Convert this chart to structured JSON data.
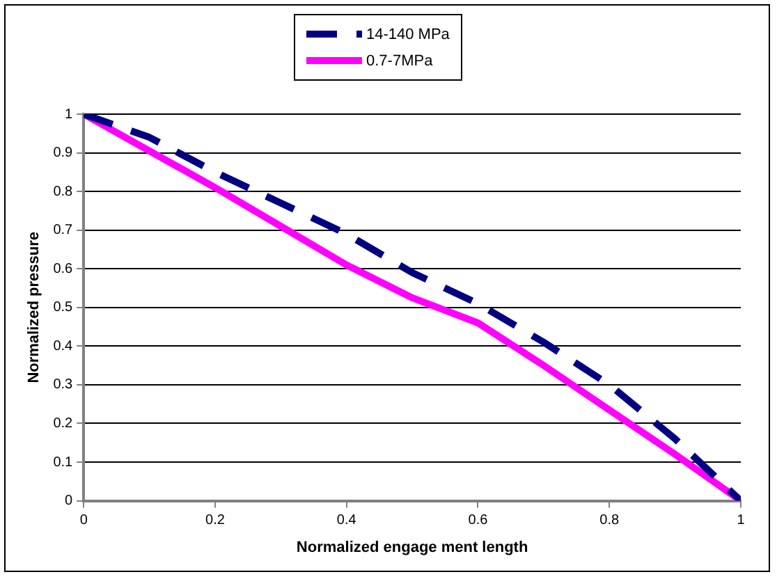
{
  "chart_data": {
    "type": "line",
    "xlabel": "Normalized engage ment length",
    "ylabel": "Normalized pressure",
    "x": [
      0,
      0.1,
      0.2,
      0.3,
      0.4,
      0.5,
      0.6,
      0.7,
      0.8,
      0.9,
      1
    ],
    "series": [
      {
        "name": "14-140 MPa",
        "color": "#000080",
        "line_style": "dashed",
        "values": [
          1,
          0.94,
          0.85,
          0.77,
          0.69,
          0.59,
          0.51,
          0.41,
          0.3,
          0.16,
          0
        ]
      },
      {
        "name": "0.7-7MPa",
        "color": "#ff00ff",
        "line_style": "solid",
        "values": [
          1,
          0.905,
          0.81,
          0.71,
          0.61,
          0.525,
          0.46,
          0.35,
          0.235,
          0.12,
          0
        ]
      }
    ],
    "xlim": [
      0,
      1
    ],
    "xticks": [
      0,
      0.2,
      0.4,
      0.6,
      0.8,
      1
    ],
    "ylim": [
      0,
      1
    ],
    "yticks": [
      0,
      0.1,
      0.2,
      0.3,
      0.4,
      0.5,
      0.6,
      0.7,
      0.8,
      0.9,
      1
    ],
    "grid": "y",
    "legend": "top",
    "marker": "none"
  }
}
